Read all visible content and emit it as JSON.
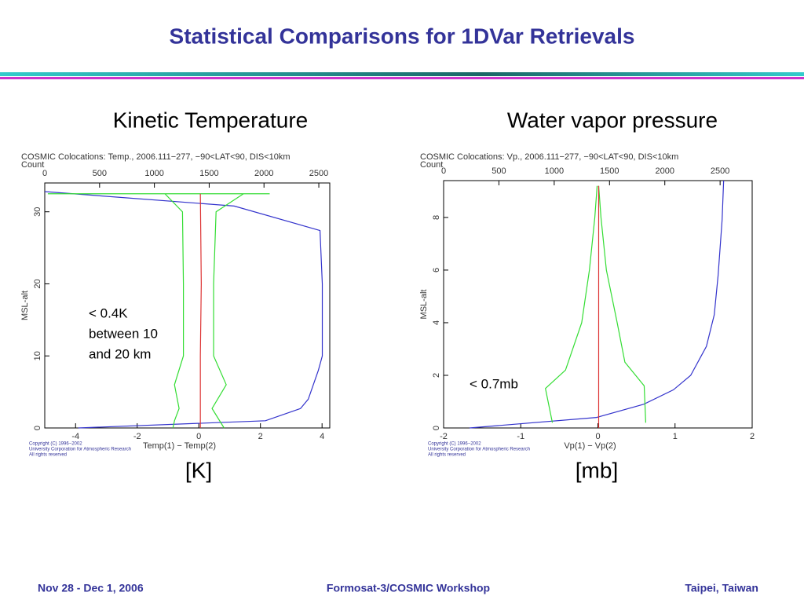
{
  "title": "Statistical Comparisons for 1DVar Retrievals",
  "footer": [
    "Nov 28 - Dec 1, 2006",
    "Formosat-3/COSMIC Workshop",
    "Taipei, Taiwan"
  ],
  "chart_data": [
    {
      "type": "line",
      "title": "Kinetic Temperature",
      "plot_title": "COSMIC Colocations: Temp., 2006.111−277, −90<LAT<90, DIS<10km",
      "x2label": "Count",
      "xlabel": "Temp(1) − Temp(2)",
      "ylabel": "MSL-alt",
      "annotation": [
        "< 0.4K",
        "between 10",
        "and 20 km"
      ],
      "unit_label": "[K]",
      "copyright": [
        "Copyright (C) 1996−2002",
        "University Corporation for Atmospheric Research",
        "All rights reserved"
      ],
      "xlim": [
        -5,
        4.25
      ],
      "xticks": [
        -4,
        -2,
        0,
        2,
        4
      ],
      "x2lim": [
        0,
        2600
      ],
      "x2ticks": [
        0,
        500,
        1000,
        1500,
        2000,
        2500
      ],
      "ylim": [
        0,
        34
      ],
      "yticks": [
        0,
        10,
        20,
        30
      ],
      "series": [
        {
          "color": "#3333cc",
          "axis": "x2",
          "x": [
            0,
            1728,
            2511,
            2532,
            2532,
            2496,
            2404,
            2333,
            2013,
            306
          ],
          "y": [
            32.8,
            30.8,
            27.4,
            20,
            10,
            8,
            4,
            2.7,
            1,
            0
          ]
        },
        {
          "color": "#33dd33",
          "x": [
            -4.9,
            2.3
          ],
          "y": [
            32.5,
            32.5
          ]
        },
        {
          "color": "#33dd33",
          "x": [
            -1.1,
            -0.53,
            -0.5,
            -0.5,
            -0.79,
            -0.64,
            -0.79,
            -0.84
          ],
          "y": [
            32.5,
            30,
            20,
            10,
            6,
            2.7,
            1,
            0
          ]
        },
        {
          "color": "#33dd33",
          "x": [
            1.45,
            0.56,
            0.48,
            0.48,
            0.89,
            0.43,
            0.82
          ],
          "y": [
            32.5,
            30,
            20,
            10,
            6,
            2.7,
            0
          ]
        },
        {
          "color": "#dd3333",
          "x": [
            0.05,
            0.05,
            0.08,
            0.05
          ],
          "y": [
            0,
            10,
            20,
            32.5
          ]
        }
      ]
    },
    {
      "type": "line",
      "title": "Water vapor pressure",
      "plot_title": "COSMIC Colocations: Vp., 2006.111−277, −90<LAT<90, DIS<10km",
      "x2label": "Count",
      "xlabel": "Vp(1) − Vp(2)",
      "ylabel": "MSL-alt",
      "annotation": [
        "< 0.7mb"
      ],
      "unit_label": "[mb]",
      "copyright": [
        "Copyright (C) 1996−2002",
        "University Corporation for Atmospheric Research",
        "All rights reserved"
      ],
      "xlim": [
        -2,
        2
      ],
      "xticks": [
        -2,
        -1,
        0,
        1,
        2
      ],
      "x2lim": [
        0,
        2790
      ],
      "x2ticks": [
        0,
        500,
        1000,
        1500,
        2000,
        2500
      ],
      "ylim": [
        0,
        9.4
      ],
      "yticks": [
        0,
        2,
        4,
        6,
        8
      ],
      "series": [
        {
          "color": "#3333cc",
          "axis": "x2",
          "x": [
            234,
            1383,
            1809,
            2078,
            2234,
            2376,
            2447,
            2482,
            2518,
            2532
          ],
          "y": [
            0,
            0.4,
            0.9,
            1.45,
            2,
            3.1,
            4.3,
            5.8,
            7.9,
            9.4
          ]
        },
        {
          "color": "#33dd33",
          "x": [
            -0.59,
            -0.68,
            -0.42,
            -0.21,
            -0.11,
            -0.04,
            -0.01
          ],
          "y": [
            0.2,
            1.5,
            2.2,
            4,
            6,
            8,
            9.2
          ]
        },
        {
          "color": "#33dd33",
          "x": [
            0.62,
            0.6,
            0.35,
            0.25,
            0.11,
            0.04,
            0.01
          ],
          "y": [
            0.2,
            1.6,
            2.5,
            4,
            6,
            8,
            9.2
          ]
        },
        {
          "color": "#dd3333",
          "x": [
            0.01,
            0.01,
            0.01
          ],
          "y": [
            0,
            4,
            9.2
          ]
        }
      ]
    }
  ]
}
